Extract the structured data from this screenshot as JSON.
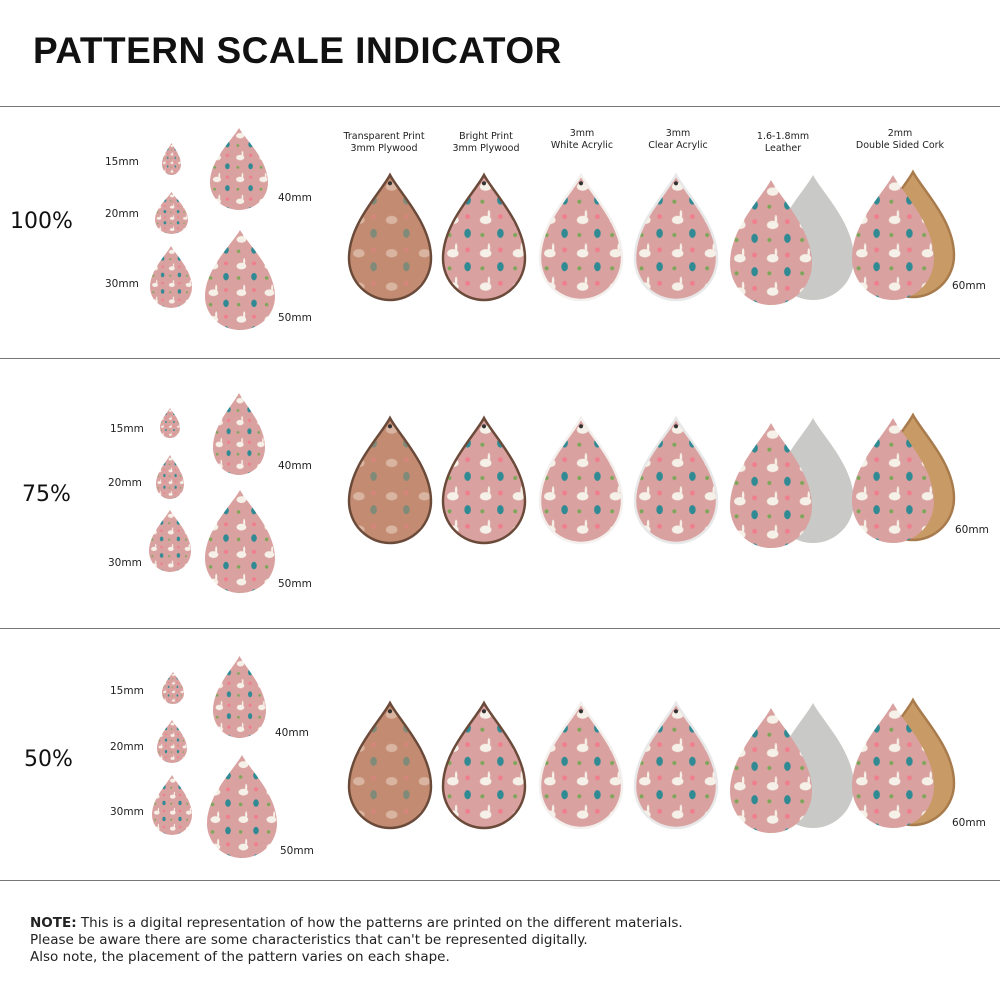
{
  "title": "PATTERN SCALE INDICATOR",
  "materials": [
    {
      "line1": "Transparent Print",
      "line2": "3mm Plywood"
    },
    {
      "line1": "Bright Print",
      "line2": "3mm Plywood"
    },
    {
      "line1": "3mm",
      "line2": "White Acrylic"
    },
    {
      "line1": "3mm",
      "line2": "Clear Acrylic"
    },
    {
      "line1": "1.6-1.8mm",
      "line2": "Leather"
    },
    {
      "line1": "2mm",
      "line2": "Double Sided Cork"
    }
  ],
  "rows": [
    {
      "scale": "100%",
      "sizes": [
        "15mm",
        "20mm",
        "30mm",
        "40mm",
        "50mm",
        "60mm"
      ]
    },
    {
      "scale": "75%",
      "sizes": [
        "15mm",
        "20mm",
        "30mm",
        "40mm",
        "50mm",
        "60mm"
      ]
    },
    {
      "scale": "50%",
      "sizes": [
        "15mm",
        "20mm",
        "30mm",
        "40mm",
        "50mm",
        "60mm"
      ]
    }
  ],
  "note": {
    "label": "NOTE:",
    "line1": "This is a digital representation of how the patterns are printed on the different materials.",
    "line2": "Please be aware there are some characteristics that can't be represented digitally.",
    "line3": "Also note, the placement of the pattern varies on each shape."
  },
  "colors": {
    "pink": "#d9a2a0",
    "plywood": "#c38c72",
    "leather_back": "#c9c9c7",
    "cork": "#c79a66"
  }
}
